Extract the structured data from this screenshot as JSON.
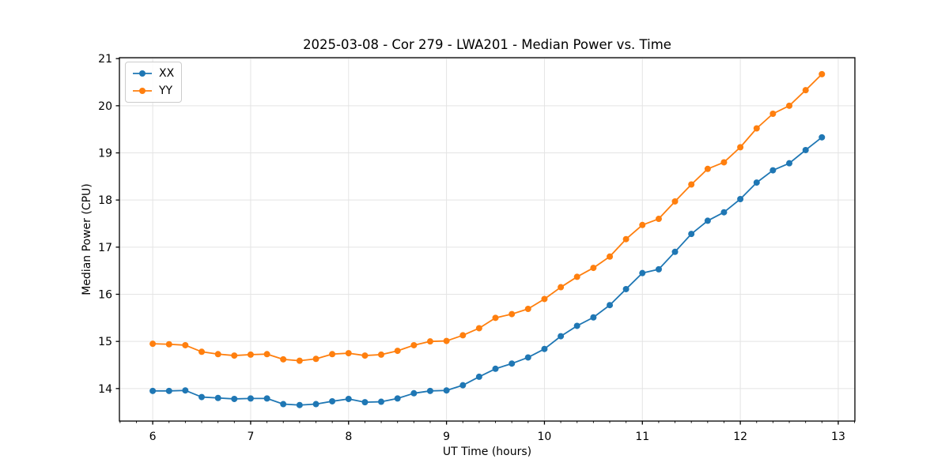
{
  "chart_data": {
    "type": "line",
    "title": "2025-03-08 - Cor 279 - LWA201 - Median Power vs. Time",
    "xlabel": "UT Time (hours)",
    "ylabel": "Median Power (CPU)",
    "xlim": [
      5.66,
      13.17
    ],
    "ylim": [
      13.31,
      21.02
    ],
    "xticks": [
      6,
      7,
      8,
      9,
      10,
      11,
      12,
      13
    ],
    "yticks": [
      14,
      15,
      16,
      17,
      18,
      19,
      20,
      21
    ],
    "x_minor_step": 0.166667,
    "grid": true,
    "legend_position": "upper-left",
    "x": [
      6.0,
      6.167,
      6.333,
      6.5,
      6.667,
      6.833,
      7.0,
      7.167,
      7.333,
      7.5,
      7.667,
      7.833,
      8.0,
      8.167,
      8.333,
      8.5,
      8.667,
      8.833,
      9.0,
      9.167,
      9.333,
      9.5,
      9.667,
      9.833,
      10.0,
      10.167,
      10.333,
      10.5,
      10.667,
      10.833,
      11.0,
      11.167,
      11.333,
      11.5,
      11.667,
      11.833,
      12.0,
      12.167,
      12.333,
      12.5,
      12.667,
      12.833
    ],
    "series": [
      {
        "name": "XX",
        "color": "#1f77b4",
        "values": [
          13.95,
          13.95,
          13.96,
          13.82,
          13.8,
          13.78,
          13.79,
          13.79,
          13.67,
          13.65,
          13.67,
          13.73,
          13.78,
          13.71,
          13.72,
          13.79,
          13.9,
          13.95,
          13.96,
          14.07,
          14.25,
          14.42,
          14.53,
          14.66,
          14.84,
          15.11,
          15.33,
          15.51,
          15.77,
          16.11,
          16.45,
          16.53,
          16.9,
          17.28,
          17.56,
          17.74,
          18.02,
          18.37,
          18.63,
          18.78,
          19.06,
          19.33
        ]
      },
      {
        "name": "YY",
        "color": "#ff7f0e",
        "values": [
          14.95,
          14.94,
          14.92,
          14.78,
          14.73,
          14.7,
          14.72,
          14.73,
          14.62,
          14.59,
          14.63,
          14.73,
          14.75,
          14.7,
          14.72,
          14.8,
          14.92,
          15.0,
          15.01,
          15.13,
          15.28,
          15.5,
          15.58,
          15.69,
          15.9,
          16.15,
          16.37,
          16.56,
          16.8,
          17.17,
          17.47,
          17.6,
          17.97,
          18.33,
          18.66,
          18.8,
          19.12,
          19.52,
          19.83,
          20.0,
          20.33,
          20.67
        ]
      }
    ]
  },
  "style_colors": {
    "grid": "#e4e4e4",
    "spine": "#000000",
    "tick": "#000000",
    "text": "#000000",
    "legend_border": "#cccccc"
  }
}
